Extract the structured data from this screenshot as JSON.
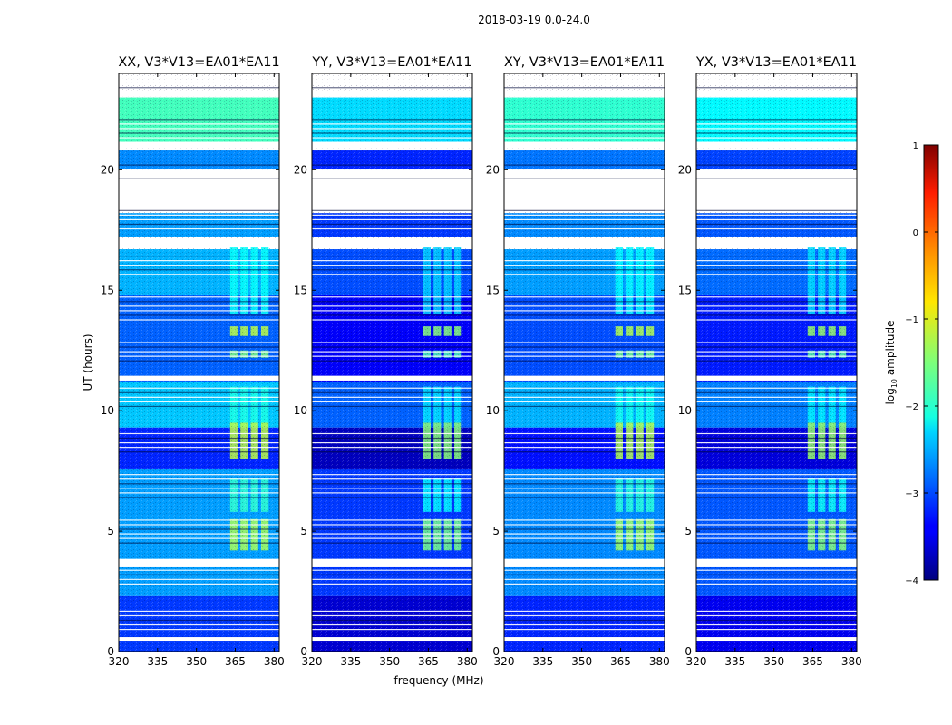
{
  "suptitle": "2018-03-19 0.0-24.0",
  "chart_data": {
    "type": "heatmap",
    "title": "2018-03-19 0.0-24.0",
    "xlabel": "frequency (MHz)",
    "ylabel": "UT (hours)",
    "xlim": [
      320,
      382
    ],
    "ylim": [
      0,
      24
    ],
    "xticks": [
      320,
      335,
      350,
      365,
      380
    ],
    "yticks": [
      0,
      5,
      10,
      15,
      20
    ],
    "colorbar": {
      "label_main": "log",
      "label_sub": "10",
      "label_tail": " amplitude",
      "range": [
        -4,
        1
      ],
      "ticks": [
        1,
        0,
        -1,
        -2,
        -3,
        -4
      ]
    },
    "panels": [
      {
        "title": "XX, V3*V13=EA01*EA11",
        "level": -2.2
      },
      {
        "title": "YY, V3*V13=EA01*EA11",
        "level": -2.7
      },
      {
        "title": "XY, V3*V13=EA01*EA11",
        "level": -2.3
      },
      {
        "title": "YX, V3*V13=EA01*EA11",
        "level": -2.55
      }
    ],
    "time_segments": [
      {
        "t0": 21.0,
        "t1": 23.0,
        "level": -1.8
      },
      {
        "t0": 20.0,
        "t1": 20.8,
        "level": -2.7
      },
      {
        "t0": 17.2,
        "t1": 18.2,
        "level": -2.6
      },
      {
        "t0": 14.8,
        "t1": 16.7,
        "level": -2.5
      },
      {
        "t0": 11.2,
        "t1": 14.8,
        "level": -2.9
      },
      {
        "t0": 9.3,
        "t1": 11.2,
        "level": -2.4
      },
      {
        "t0": 7.6,
        "t1": 9.3,
        "level": -3.2
      },
      {
        "t0": 3.8,
        "t1": 7.6,
        "level": -2.6
      },
      {
        "t0": 2.3,
        "t1": 3.5,
        "level": -2.6
      },
      {
        "t0": 0.0,
        "t1": 2.3,
        "level": -3.1
      }
    ],
    "flagged_bands": [
      [
        23.05,
        23.3
      ],
      [
        20.9,
        21.15
      ],
      [
        18.25,
        19.95
      ],
      [
        16.8,
        17.15
      ],
      [
        11.25,
        11.45
      ],
      [
        3.55,
        3.85
      ],
      [
        0.45,
        0.6
      ]
    ],
    "rfi_bursts": [
      {
        "t0": 8.0,
        "t1": 9.5,
        "f0": 363,
        "f1": 379,
        "level": -1.2
      },
      {
        "t0": 4.2,
        "t1": 5.5,
        "f0": 363,
        "f1": 379,
        "level": -1.3
      },
      {
        "t0": 13.1,
        "t1": 13.5,
        "f0": 363,
        "f1": 379,
        "level": -1.2
      },
      {
        "t0": 12.2,
        "t1": 12.5,
        "f0": 363,
        "f1": 379,
        "level": -1.5
      },
      {
        "t0": 5.8,
        "t1": 7.2,
        "f0": 363,
        "f1": 379,
        "level": -1.9
      },
      {
        "t0": 9.5,
        "t1": 11.0,
        "f0": 363,
        "f1": 379,
        "level": -2.0
      },
      {
        "t0": 14.0,
        "t1": 17.0,
        "f0": 363,
        "f1": 379,
        "level": -2.1
      }
    ]
  }
}
